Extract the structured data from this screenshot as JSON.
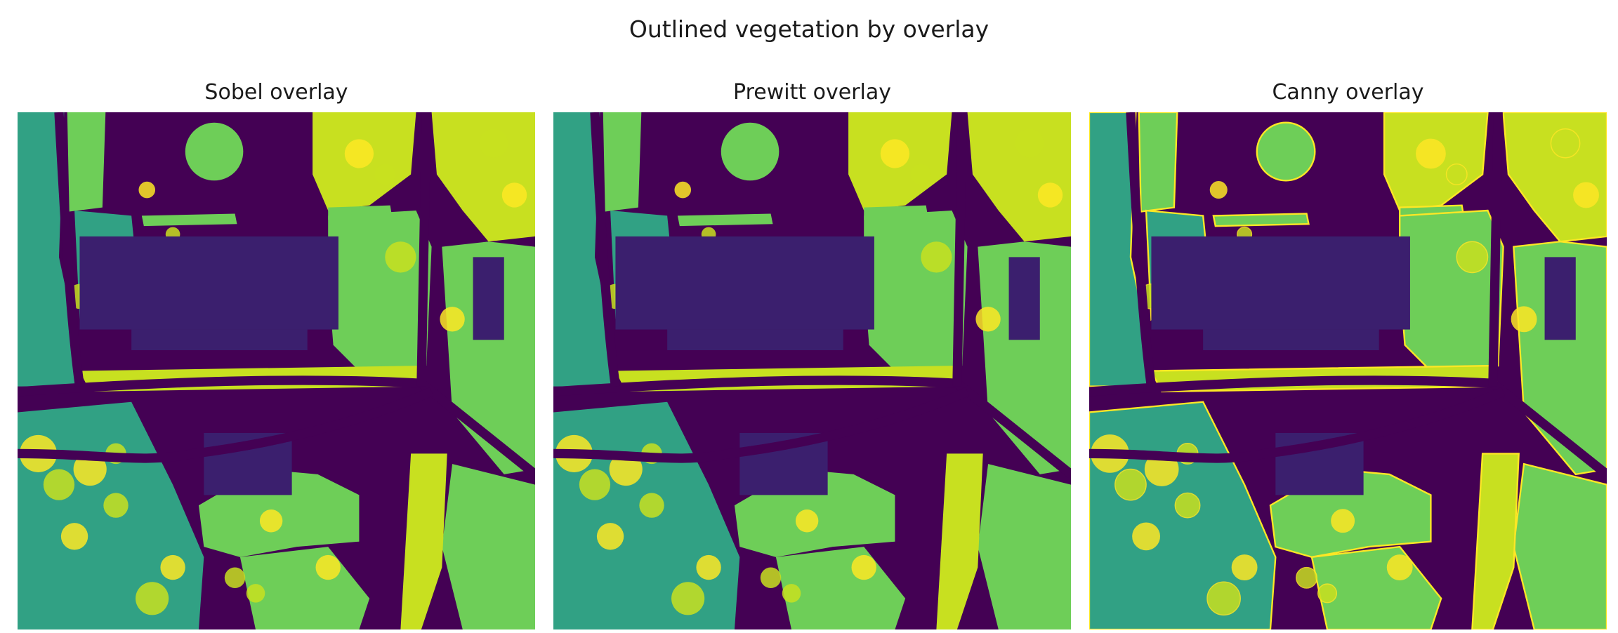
{
  "figure": {
    "title": "Outlined vegetation by overlay",
    "colormap": "viridis",
    "colors": {
      "background": "#440154",
      "grass": "#31a184",
      "vegetation": "#6ece58",
      "bright_vegetation": "#c8e020",
      "highlight": "#fde725",
      "shadow": "#3b1f6e",
      "edge_line": "#fde725"
    }
  },
  "panels": [
    {
      "title": "Sobel overlay",
      "edges_visible": false
    },
    {
      "title": "Prewitt overlay",
      "edges_visible": false
    },
    {
      "title": "Canny overlay",
      "edges_visible": true
    }
  ]
}
